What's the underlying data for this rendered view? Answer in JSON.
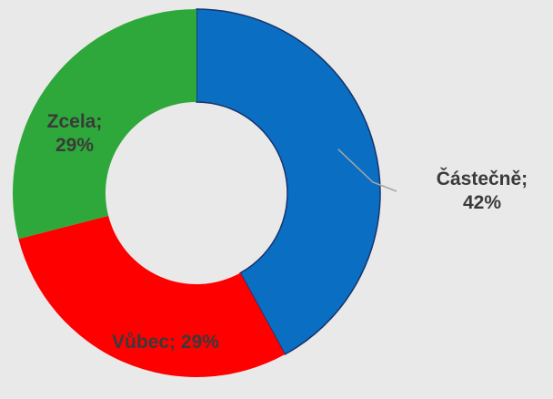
{
  "chart_data": {
    "type": "donut",
    "labels": [
      "Částečně; 42%",
      "Vůbec; 29%",
      "Zcela; 29%"
    ],
    "values": [
      42,
      29,
      29
    ],
    "colors": [
      "#0a6fc2",
      "#ff0000",
      "#2ea83a"
    ]
  }
}
